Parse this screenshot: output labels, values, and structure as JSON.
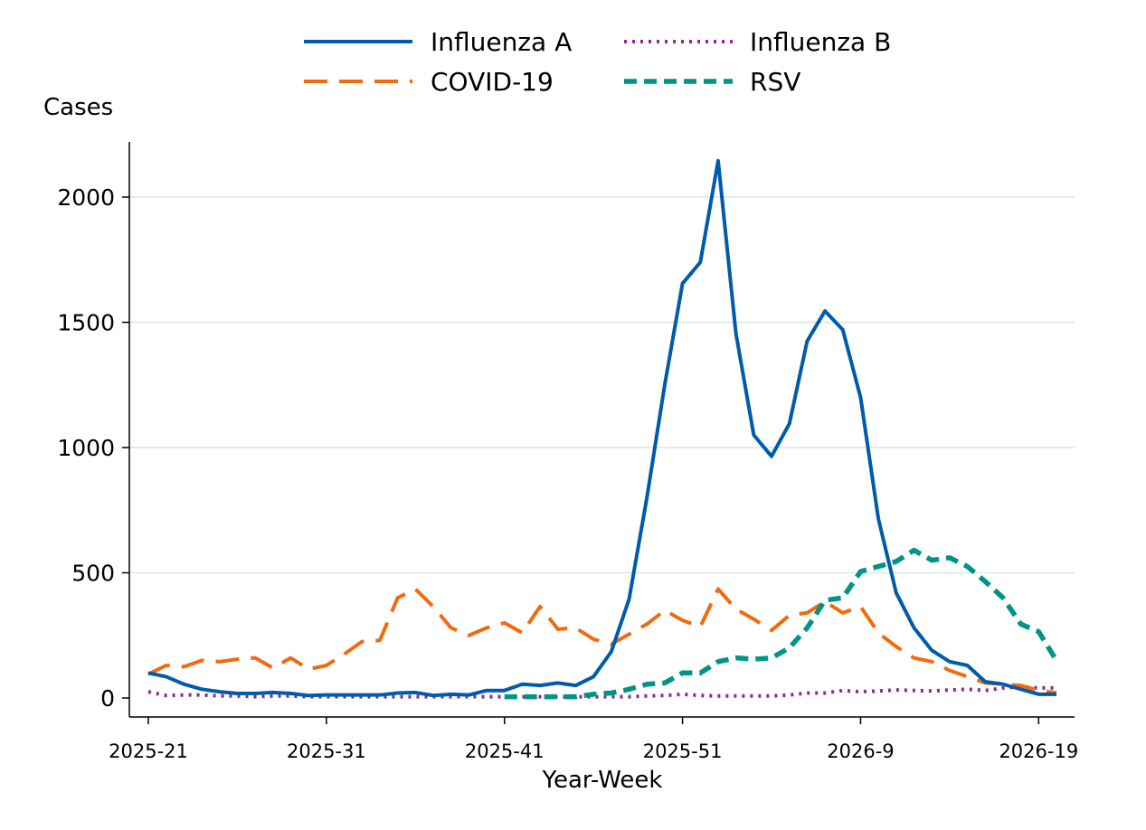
{
  "chart_data": {
    "type": "line",
    "title": "",
    "xlabel": "Year-Week",
    "ylabel": "Cases",
    "ylim": [
      0,
      2200
    ],
    "yticks": [
      0,
      500,
      1000,
      1500,
      2000
    ],
    "grid": "horizontal",
    "legend_position": "top",
    "categories": [
      "2025-21",
      "2025-22",
      "2025-23",
      "2025-24",
      "2025-25",
      "2025-26",
      "2025-27",
      "2025-28",
      "2025-29",
      "2025-30",
      "2025-31",
      "2025-32",
      "2025-33",
      "2025-34",
      "2025-35",
      "2025-36",
      "2025-37",
      "2025-38",
      "2025-39",
      "2025-40",
      "2025-41",
      "2025-42",
      "2025-43",
      "2025-44",
      "2025-45",
      "2025-46",
      "2025-47",
      "2025-48",
      "2025-49",
      "2025-50",
      "2025-51",
      "2025-52",
      "2026-1",
      "2026-2",
      "2026-3",
      "2026-4",
      "2026-5",
      "2026-6",
      "2026-7",
      "2026-8",
      "2026-9",
      "2026-10",
      "2026-11",
      "2026-12",
      "2026-13",
      "2026-14",
      "2026-15",
      "2026-16",
      "2026-17",
      "2026-18",
      "2026-19",
      "2026-20"
    ],
    "x_tick_labels": [
      "2025-21",
      "2025-31",
      "2025-41",
      "2025-51",
      "2026-9",
      "2026-19"
    ],
    "series": [
      {
        "name": "Influenza A",
        "color": "#005BAA",
        "dash": "solid",
        "values": [
          100,
          85,
          55,
          35,
          25,
          18,
          18,
          22,
          18,
          10,
          12,
          12,
          12,
          12,
          20,
          22,
          10,
          15,
          12,
          30,
          30,
          55,
          50,
          60,
          50,
          85,
          185,
          395,
          800,
          1250,
          1655,
          1740,
          2145,
          1455,
          1050,
          965,
          1095,
          1425,
          1545,
          1470,
          1200,
          715,
          420,
          280,
          190,
          145,
          130,
          65,
          55,
          35,
          15,
          15
        ]
      },
      {
        "name": "Influenza B",
        "color": "#8E2A8F",
        "dash": "dotted",
        "values": [
          25,
          10,
          12,
          12,
          8,
          8,
          5,
          8,
          8,
          5,
          5,
          5,
          5,
          5,
          5,
          5,
          5,
          5,
          5,
          5,
          5,
          5,
          5,
          5,
          5,
          5,
          5,
          5,
          8,
          10,
          15,
          10,
          8,
          8,
          8,
          8,
          12,
          20,
          20,
          30,
          25,
          28,
          32,
          30,
          28,
          32,
          35,
          30,
          40,
          45,
          40,
          40
        ]
      },
      {
        "name": "COVID-19",
        "color": "#F26A0F",
        "dash": "dashed",
        "values": [
          95,
          130,
          125,
          150,
          145,
          155,
          160,
          120,
          160,
          115,
          130,
          175,
          225,
          230,
          400,
          435,
          365,
          280,
          250,
          280,
          300,
          260,
          365,
          275,
          280,
          235,
          215,
          255,
          295,
          350,
          310,
          285,
          435,
          355,
          315,
          270,
          330,
          340,
          385,
          340,
          365,
          260,
          205,
          160,
          145,
          110,
          85,
          60,
          55,
          50,
          30,
          20
        ]
      },
      {
        "name": "RSV",
        "color": "#009485",
        "dash": "dashed-short",
        "values": [
          null,
          null,
          null,
          null,
          null,
          null,
          null,
          null,
          null,
          null,
          null,
          null,
          null,
          null,
          null,
          null,
          null,
          null,
          null,
          null,
          5,
          5,
          5,
          5,
          5,
          15,
          20,
          35,
          55,
          60,
          100,
          100,
          145,
          160,
          155,
          160,
          200,
          280,
          390,
          400,
          505,
          525,
          545,
          590,
          550,
          560,
          525,
          465,
          400,
          295,
          265,
          150
        ]
      }
    ],
    "legend_order": [
      "Influenza A",
      "Influenza B",
      "COVID-19",
      "RSV"
    ]
  }
}
